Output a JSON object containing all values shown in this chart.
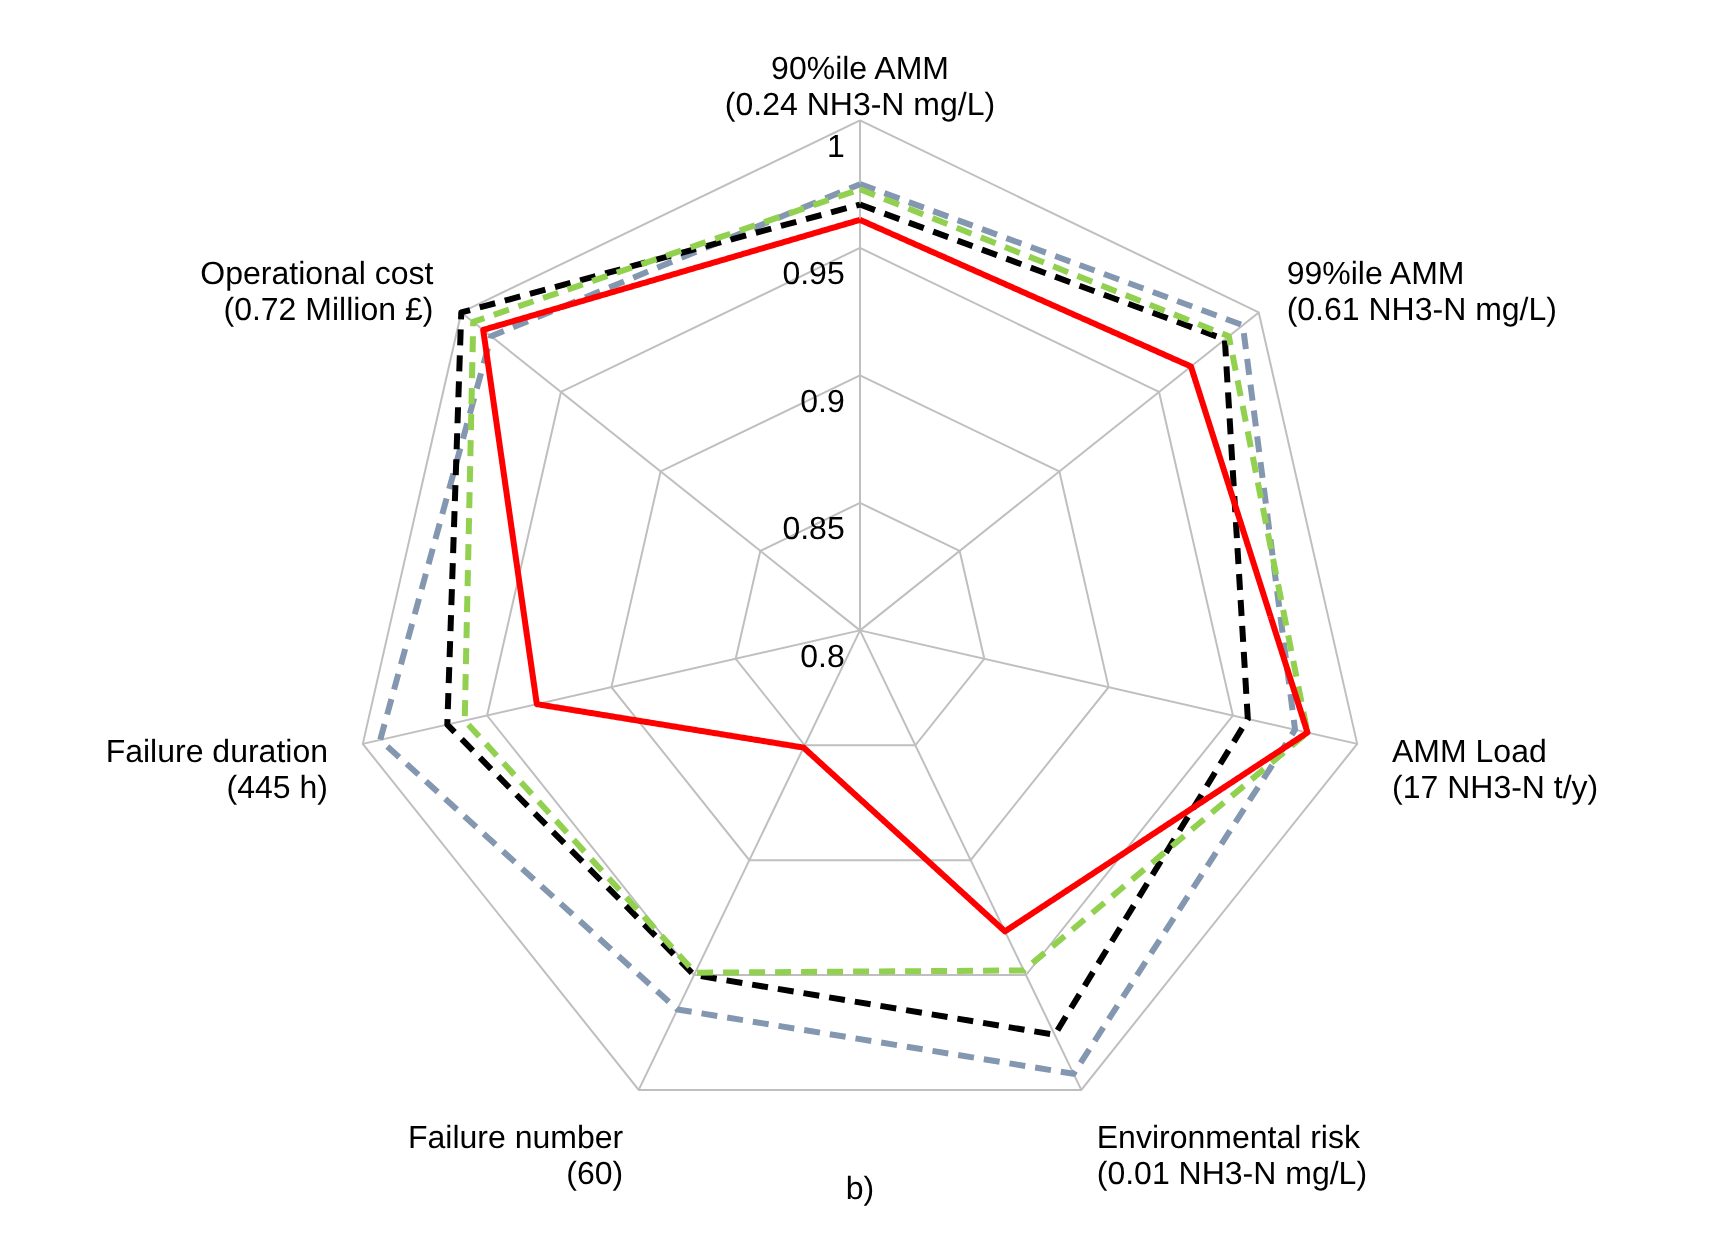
{
  "chart_data": {
    "type": "radar",
    "categories": [
      "90%ile AMM\n(0.24 NH3-N mg/L)",
      "99%ile AMM\n(0.61 NH3-N mg/L)",
      "AMM Load\n(17 NH3-N t/y)",
      "Environmental risk\n(0.01 NH3-N mg/L)",
      "Failure number\n(60)",
      "Failure duration\n(445 h)",
      "Operational cost\n(0.72 Million £)"
    ],
    "series": [
      {
        "color": "#8497b0",
        "line_style": "dashed",
        "values": [
          0.975,
          0.992,
          0.975,
          0.993,
          0.965,
          0.993,
          0.985
        ]
      },
      {
        "color": "#000000",
        "line_style": "dashed",
        "values": [
          0.967,
          0.983,
          0.956,
          0.976,
          0.95,
          0.966,
          1.0
        ]
      },
      {
        "color": "#92d050",
        "line_style": "dashed",
        "values": [
          0.973,
          0.985,
          0.98,
          0.948,
          0.949,
          0.959,
          0.994
        ]
      },
      {
        "color": "#ff0000",
        "line_style": "solid",
        "values": [
          0.961,
          0.966,
          0.98,
          0.931,
          0.851,
          0.93,
          0.989
        ]
      }
    ],
    "ylim": [
      0.8,
      1
    ],
    "yticks": [
      0.8,
      0.85,
      0.9,
      0.95,
      1
    ],
    "grid": true,
    "marker": "none",
    "annotations": [
      "b)"
    ]
  }
}
